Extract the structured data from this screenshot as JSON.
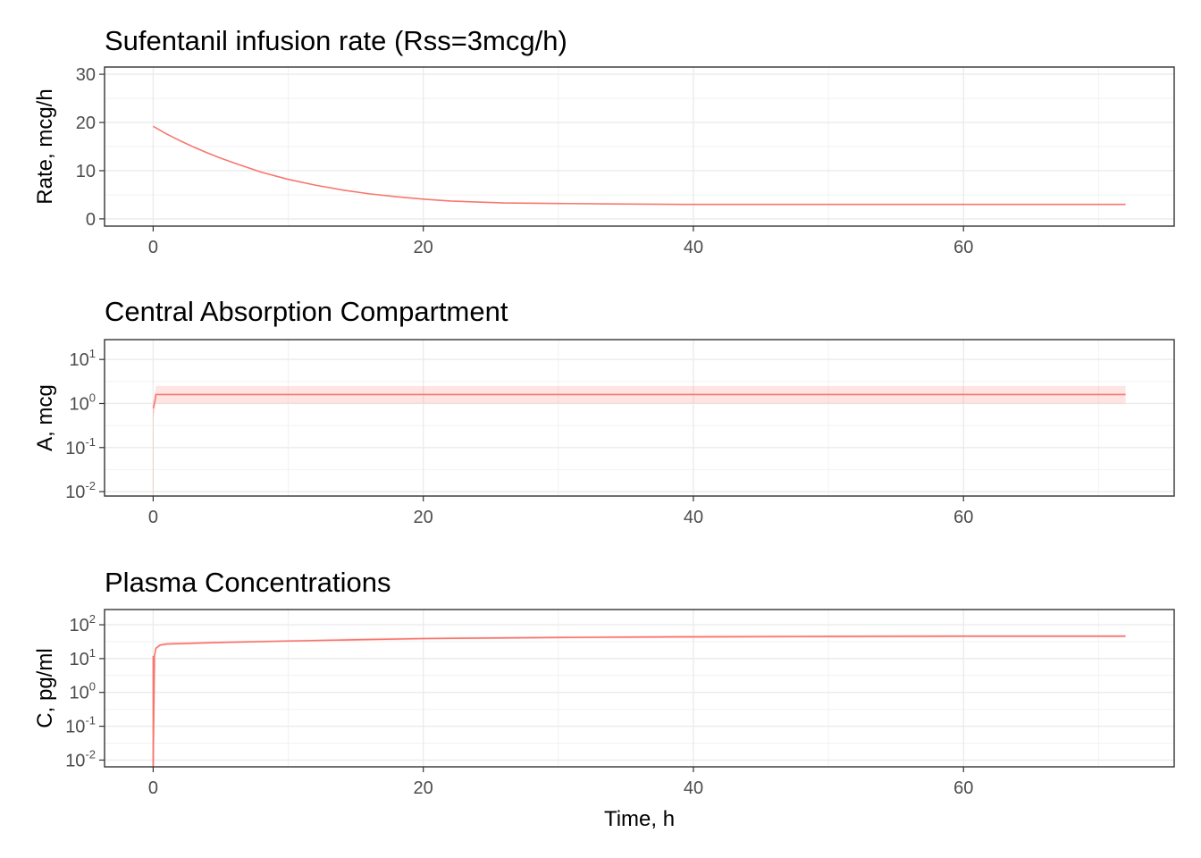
{
  "chart_data": [
    {
      "type": "line",
      "title": "Sufentanil infusion rate (Rss=3mcg/h)",
      "xlabel": "",
      "ylabel": "Rate, mcg/h",
      "xlim": [
        -3.6,
        75.6
      ],
      "ylim": [
        -1.5,
        31.5
      ],
      "x_ticks": [
        0,
        20,
        40,
        60
      ],
      "y_ticks": [
        0,
        10,
        20,
        30
      ],
      "y_tick_labels": [
        "0",
        "10",
        "20",
        "30"
      ],
      "scale": "linear",
      "grid": true,
      "color": "#F8766D",
      "series": [
        {
          "x": [
            0,
            1,
            2,
            3,
            4,
            5,
            6,
            8,
            10,
            12,
            14,
            16,
            18,
            20,
            22,
            24,
            26,
            30,
            34,
            40,
            50,
            60,
            72
          ],
          "y": [
            19.2,
            17.6,
            16.2,
            14.9,
            13.7,
            12.6,
            11.6,
            9.7,
            8.2,
            7.0,
            6.0,
            5.2,
            4.6,
            4.1,
            3.7,
            3.5,
            3.3,
            3.2,
            3.1,
            3.0,
            3.0,
            3.0,
            3.0
          ]
        }
      ]
    },
    {
      "type": "area",
      "title": "Central Absorption Compartment",
      "xlabel": "",
      "ylabel": "A, mcg",
      "xlim": [
        -3.6,
        75.6
      ],
      "ylim_log10": [
        -2.1,
        1.45
      ],
      "x_ticks": [
        0,
        20,
        40,
        60
      ],
      "y_ticks_log10": [
        -2,
        -1,
        0,
        1
      ],
      "y_tick_labels": [
        {
          "base": "10",
          "exp": "-2"
        },
        {
          "base": "10",
          "exp": "-1"
        },
        {
          "base": "10",
          "exp": "0"
        },
        {
          "base": "10",
          "exp": "1"
        }
      ],
      "scale": "log10",
      "grid": true,
      "color": "#F8766D",
      "band_color": "#F8766D",
      "series": [
        {
          "x": [
            0,
            0.15,
            0.2,
            2,
            10,
            20,
            40,
            60,
            72
          ],
          "y": [
            0.78,
            1.2,
            1.6,
            1.6,
            1.6,
            1.6,
            1.6,
            1.6,
            1.6
          ],
          "lower": [
            0.45,
            0.75,
            1.0,
            1.0,
            1.0,
            1.0,
            1.0,
            1.0,
            1.0
          ],
          "upper": [
            1.2,
            1.8,
            2.5,
            2.5,
            2.5,
            2.5,
            2.5,
            2.5,
            2.5
          ]
        }
      ]
    },
    {
      "type": "area",
      "title": "Plasma Concentrations",
      "xlabel": "Time, h",
      "ylabel": "C, pg/ml",
      "xlim": [
        -3.6,
        75.6
      ],
      "ylim_log10": [
        -2.2,
        2.45
      ],
      "x_ticks": [
        0,
        20,
        40,
        60
      ],
      "y_ticks_log10": [
        -2,
        -1,
        0,
        1,
        2
      ],
      "y_tick_labels": [
        {
          "base": "10",
          "exp": "-2"
        },
        {
          "base": "10",
          "exp": "-1"
        },
        {
          "base": "10",
          "exp": "0"
        },
        {
          "base": "10",
          "exp": "1"
        },
        {
          "base": "10",
          "exp": "2"
        }
      ],
      "scale": "log10",
      "grid": true,
      "color": "#F8766D",
      "band_color": "#F8766D",
      "series": [
        {
          "x": [
            0,
            0.1,
            0.2,
            0.5,
            1,
            5,
            10,
            15,
            20,
            30,
            40,
            50,
            60,
            72
          ],
          "y": [
            0.006,
            12,
            20,
            25,
            27,
            30,
            33,
            36,
            39,
            42,
            44,
            45,
            46,
            46
          ],
          "lower": [
            0.006,
            11,
            18,
            23,
            25,
            28,
            31,
            33,
            36,
            39,
            40,
            41,
            42,
            42
          ],
          "upper": [
            0.006,
            13,
            22,
            28,
            30,
            33,
            36,
            40,
            43,
            46,
            49,
            50,
            51,
            51
          ]
        }
      ]
    }
  ]
}
